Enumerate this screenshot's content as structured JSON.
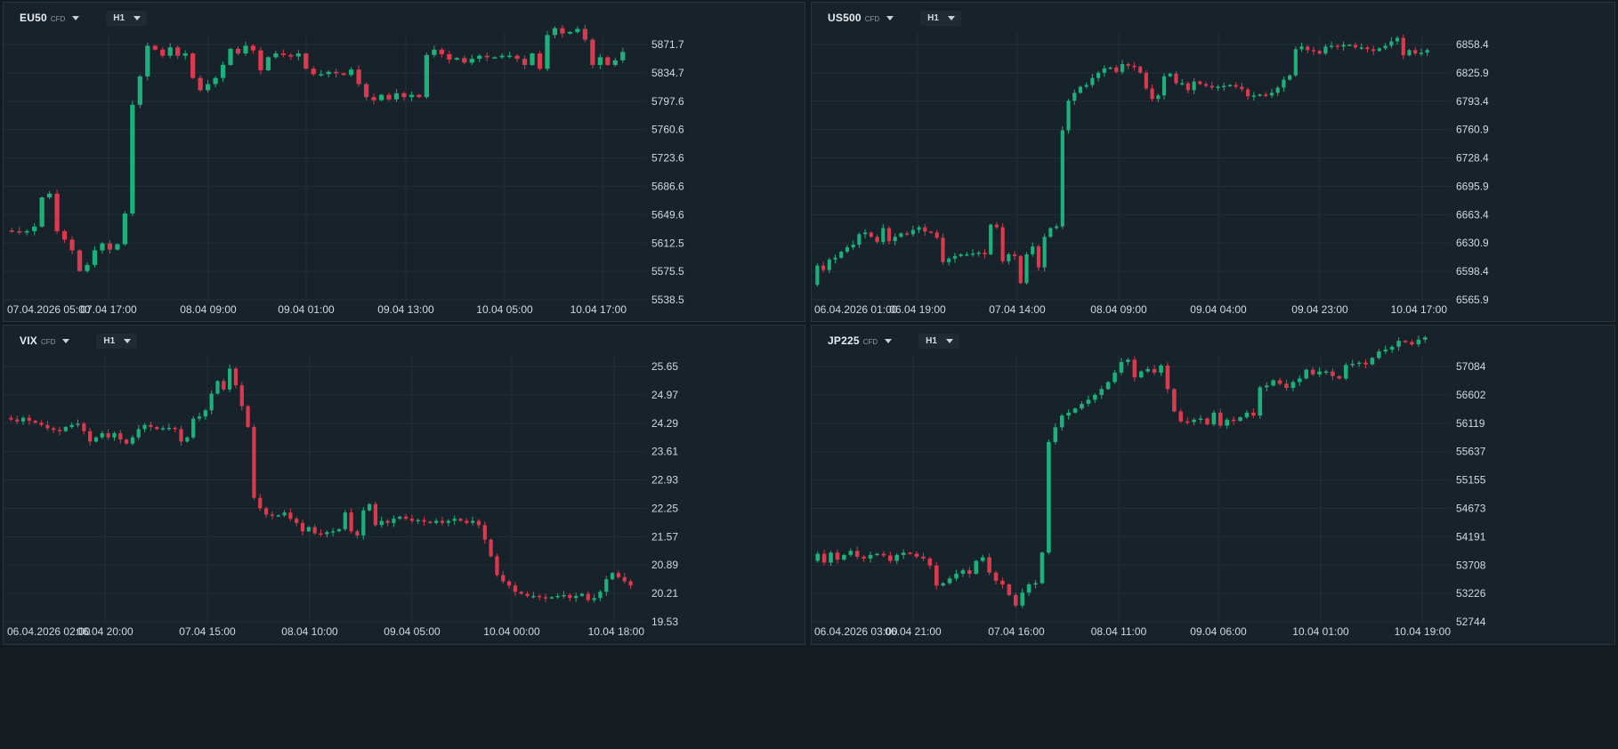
{
  "colors": {
    "background": "#18222a",
    "up": "#1db07a",
    "down": "#d93a4e",
    "grid": "#222d35",
    "text": "#d3d9de"
  },
  "panels": [
    {
      "symbol": "EU50",
      "type_tag": "CFD",
      "timeframe": "H1"
    },
    {
      "symbol": "US500",
      "type_tag": "CFD",
      "timeframe": "H1"
    },
    {
      "symbol": "VIX",
      "type_tag": "CFD",
      "timeframe": "H1"
    },
    {
      "symbol": "JP225",
      "type_tag": "CFD",
      "timeframe": "H1"
    }
  ],
  "chart_data": [
    {
      "type": "candlestick",
      "title": "EU50",
      "yticks": [
        "5871.7",
        "5834.7",
        "5797.6",
        "5760.6",
        "5723.6",
        "5686.6",
        "5649.6",
        "5612.5",
        "5575.5",
        "5538.5"
      ],
      "ylim": [
        5538.5,
        5871.7
      ],
      "xticks": [
        "07.04.2026 05:00",
        "07.04 17:00",
        "08.04 09:00",
        "09.04 01:00",
        "09.04 13:00",
        "10.04 05:00",
        "10.04 17:00"
      ],
      "gap_candles": [
        [
          70,
          6,
          "flat"
        ],
        [
          18,
          5,
          "down"
        ],
        [
          18,
          8,
          "up"
        ],
        [
          20,
          14,
          "down"
        ],
        [
          28,
          30,
          "up"
        ],
        [
          36,
          52,
          "up"
        ],
        [
          35,
          22,
          "down"
        ],
        [
          22,
          18,
          "down"
        ],
        [
          10,
          12,
          "down"
        ],
        [
          8,
          14,
          "down"
        ],
        [
          12,
          26,
          "down"
        ],
        [
          34,
          14,
          "down"
        ],
        [
          24,
          18,
          "up"
        ],
        [
          12,
          20,
          "up"
        ],
        [
          8,
          14,
          "down"
        ],
        [
          30,
          46,
          "up"
        ]
      ],
      "candles_note": "price path in data units",
      "path": [
        5629,
        5628,
        5627,
        5628,
        5634,
        5672,
        5677,
        5628,
        5617,
        5603,
        5576,
        5584,
        5603,
        5612,
        5604,
        5611,
        5651,
        5793,
        5830,
        5870,
        5865,
        5857,
        5868,
        5857,
        5860,
        5828,
        5812,
        5820,
        5828,
        5845,
        5866,
        5860,
        5870,
        5864,
        5838,
        5855,
        5860,
        5858,
        5856,
        5860,
        5840,
        5833,
        5833,
        5836,
        5834,
        5832,
        5839,
        5820,
        5803,
        5799,
        5806,
        5800,
        5808,
        5803,
        5806,
        5803,
        5858,
        5865,
        5859,
        5852,
        5854,
        5848,
        5853,
        5857,
        5855,
        5855,
        5857,
        5857,
        5853,
        5845,
        5860,
        5840,
        5884,
        5893,
        5886,
        5888,
        5892,
        5878,
        5845,
        5855,
        5845,
        5851,
        5862
      ]
    },
    {
      "type": "candlestick",
      "title": "US500",
      "yticks": [
        "6858.4",
        "6825.9",
        "6793.4",
        "6760.9",
        "6728.4",
        "6695.9",
        "6663.4",
        "6630.9",
        "6598.4",
        "6565.9"
      ],
      "ylim": [
        6565.9,
        6858.4
      ],
      "xticks": [
        "06.04.2026 01:00",
        "06.04 19:00",
        "07.04 14:00",
        "08.04 09:00",
        "09.04 04:00",
        "09.04 23:00",
        "10.04 17:00"
      ],
      "path": [
        6583,
        6605,
        6600,
        6612,
        6614,
        6621,
        6626,
        6629,
        6641,
        6643,
        6638,
        6632,
        6648,
        6633,
        6638,
        6642,
        6641,
        6646,
        6649,
        6644,
        6643,
        6637,
        6609,
        6613,
        6616,
        6618,
        6618,
        6619,
        6620,
        6618,
        6652,
        6649,
        6610,
        6618,
        6616,
        6585,
        6618,
        6627,
        6603,
        6638,
        6648,
        6650,
        6760,
        6794,
        6803,
        6810,
        6812,
        6820,
        6826,
        6831,
        6832,
        6827,
        6836,
        6834,
        6833,
        6826,
        6808,
        6796,
        6800,
        6822,
        6825,
        6814,
        6814,
        6806,
        6816,
        6813,
        6811,
        6809,
        6810,
        6811,
        6812,
        6810,
        6807,
        6799,
        6800,
        6801,
        6800,
        6803,
        6809,
        6818,
        6823,
        6853,
        6856,
        6852,
        6851,
        6848,
        6856,
        6857,
        6856,
        6858,
        6858,
        6855,
        6855,
        6853,
        6851,
        6854,
        6857,
        6862,
        6866,
        6846,
        6852,
        6848,
        6849,
        6852
      ]
    },
    {
      "type": "candlestick",
      "title": "VIX",
      "yticks": [
        "25.65",
        "24.97",
        "24.29",
        "23.61",
        "22.93",
        "22.25",
        "21.57",
        "20.89",
        "20.21",
        "19.53"
      ],
      "ylim": [
        19.53,
        25.65
      ],
      "xticks": [
        "06.04.2026 02:00",
        "06.04 20:00",
        "07.04 15:00",
        "08.04 10:00",
        "09.04 05:00",
        "10.04 00:00",
        "10.04 18:00"
      ],
      "path": [
        24.42,
        24.38,
        24.33,
        24.42,
        24.35,
        24.3,
        24.25,
        24.17,
        24.13,
        24.1,
        24.2,
        24.25,
        24.28,
        24.1,
        23.85,
        23.95,
        24.05,
        23.95,
        24.05,
        23.9,
        23.8,
        23.95,
        24.15,
        24.25,
        24.2,
        24.15,
        24.17,
        24.18,
        24.15,
        23.85,
        23.95,
        24.4,
        24.45,
        24.6,
        25.0,
        25.3,
        25.1,
        25.6,
        25.2,
        24.7,
        24.2,
        22.5,
        22.25,
        22.1,
        22.08,
        22.08,
        22.15,
        22.0,
        21.9,
        21.7,
        21.8,
        21.65,
        21.63,
        21.68,
        21.7,
        21.75,
        22.15,
        21.7,
        21.6,
        22.2,
        22.35,
        21.85,
        21.95,
        21.9,
        22.0,
        22.05,
        22.0,
        21.95,
        21.97,
        21.93,
        21.9,
        21.95,
        21.9,
        21.95,
        22.0,
        21.95,
        21.9,
        21.95,
        21.85,
        21.5,
        21.1,
        20.65,
        20.5,
        20.4,
        20.25,
        20.2,
        20.15,
        20.15,
        20.12,
        20.1,
        20.12,
        20.15,
        20.17,
        20.1,
        20.15,
        20.2,
        20.05,
        20.1,
        20.25,
        20.55,
        20.7,
        20.6,
        20.5,
        20.4
      ]
    },
    {
      "type": "candlestick",
      "title": "JP225",
      "yticks": [
        "57084",
        "56602",
        "56119",
        "55637",
        "55155",
        "54673",
        "54191",
        "53708",
        "53226",
        "52744"
      ],
      "ylim": [
        52744,
        57084
      ],
      "xticks": [
        "06.04.2026 03:00",
        "06.04 21:00",
        "07.04 16:00",
        "08.04 11:00",
        "09.04 06:00",
        "10.04 01:00",
        "10.04 19:00"
      ],
      "path": [
        53780,
        53900,
        53750,
        53920,
        53800,
        53880,
        53950,
        53850,
        53820,
        53880,
        53900,
        53870,
        53780,
        53880,
        53920,
        53900,
        53850,
        53820,
        53700,
        53360,
        53400,
        53480,
        53560,
        53620,
        53560,
        53780,
        53840,
        53580,
        53440,
        53380,
        53200,
        53020,
        53240,
        53380,
        53400,
        53920,
        55800,
        56050,
        56250,
        56300,
        56370,
        56450,
        56520,
        56600,
        56700,
        56820,
        56980,
        57160,
        57200,
        56900,
        57000,
        57040,
        56980,
        57100,
        56700,
        56320,
        56150,
        56140,
        56180,
        56200,
        56100,
        56300,
        56080,
        56180,
        56160,
        56220,
        56300,
        56250,
        56730,
        56760,
        56850,
        56790,
        56720,
        56820,
        56880,
        57030,
        56950,
        57000,
        57000,
        56920,
        56880,
        57110,
        57130,
        57150,
        57120,
        57230,
        57340,
        57370,
        57420,
        57520,
        57500,
        57460,
        57540,
        57580
      ]
    }
  ]
}
